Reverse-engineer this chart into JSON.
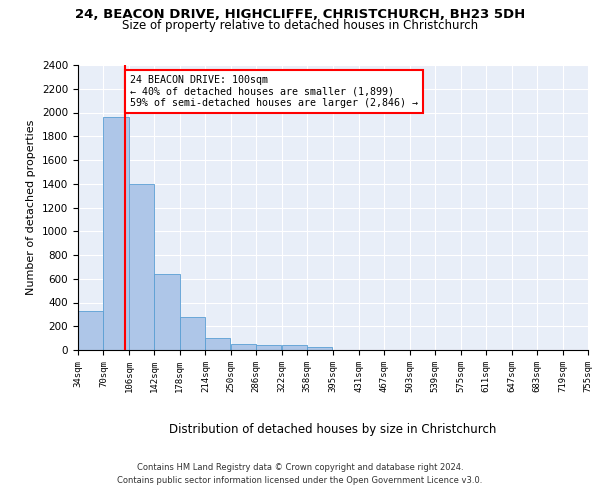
{
  "title1": "24, BEACON DRIVE, HIGHCLIFFE, CHRISTCHURCH, BH23 5DH",
  "title2": "Size of property relative to detached houses in Christchurch",
  "xlabel": "Distribution of detached houses by size in Christchurch",
  "ylabel": "Number of detached properties",
  "bar_color": "#aec6e8",
  "bar_edge_color": "#5a9fd4",
  "background_color": "#e8eef8",
  "bins": [
    34,
    70,
    106,
    142,
    178,
    214,
    250,
    286,
    322,
    358,
    395,
    431,
    467,
    503,
    539,
    575,
    611,
    647,
    683,
    719,
    755
  ],
  "bin_labels": [
    "34sqm",
    "70sqm",
    "106sqm",
    "142sqm",
    "178sqm",
    "214sqm",
    "250sqm",
    "286sqm",
    "322sqm",
    "358sqm",
    "395sqm",
    "431sqm",
    "467sqm",
    "503sqm",
    "539sqm",
    "575sqm",
    "611sqm",
    "647sqm",
    "683sqm",
    "719sqm",
    "755sqm"
  ],
  "counts": [
    325,
    1960,
    1400,
    640,
    275,
    105,
    50,
    42,
    38,
    22,
    0,
    0,
    0,
    0,
    0,
    0,
    0,
    0,
    0,
    0
  ],
  "vline_x": 100,
  "annotation_text": "24 BEACON DRIVE: 100sqm\n← 40% of detached houses are smaller (1,899)\n59% of semi-detached houses are larger (2,846) →",
  "annotation_box_color": "white",
  "annotation_box_edge_color": "red",
  "vline_color": "red",
  "ylim": [
    0,
    2400
  ],
  "yticks": [
    0,
    200,
    400,
    600,
    800,
    1000,
    1200,
    1400,
    1600,
    1800,
    2000,
    2200,
    2400
  ],
  "footer1": "Contains HM Land Registry data © Crown copyright and database right 2024.",
  "footer2": "Contains public sector information licensed under the Open Government Licence v3.0."
}
